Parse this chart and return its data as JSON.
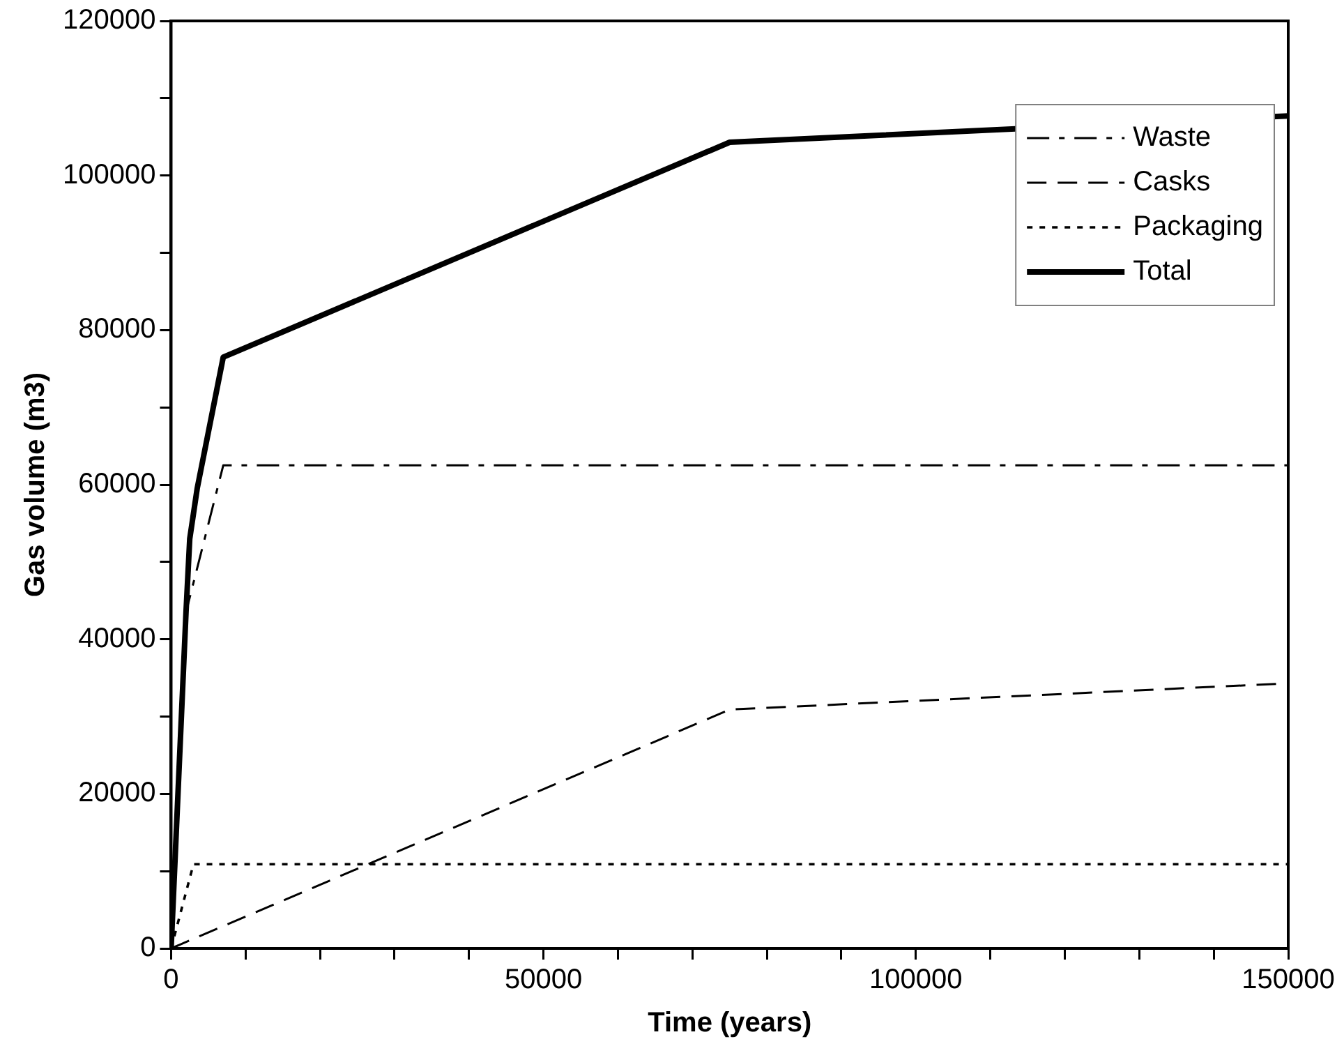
{
  "chart_data": {
    "type": "line",
    "xlabel": "Time (years)",
    "ylabel": "Gas volume (m3)",
    "xlim": [
      0,
      150000
    ],
    "ylim": [
      0,
      120000
    ],
    "xticks": [
      0,
      {
        "value": 10000,
        "label": null
      },
      {
        "value": 20000,
        "label": null
      },
      {
        "value": 30000,
        "label": null
      },
      {
        "value": 40000,
        "label": null
      },
      50000,
      {
        "value": 60000,
        "label": null
      },
      {
        "value": 70000,
        "label": null
      },
      {
        "value": 80000,
        "label": null
      },
      {
        "value": 90000,
        "label": null
      },
      100000,
      {
        "value": 110000,
        "label": null
      },
      {
        "value": 120000,
        "label": null
      },
      {
        "value": 130000,
        "label": null
      },
      {
        "value": 140000,
        "label": null
      },
      150000
    ],
    "yticks": [
      0,
      {
        "value": 10000,
        "label": null
      },
      20000,
      {
        "value": 30000,
        "label": null
      },
      40000,
      {
        "value": 50000,
        "label": null
      },
      60000,
      {
        "value": 70000,
        "label": null
      },
      80000,
      {
        "value": 90000,
        "label": null
      },
      100000,
      {
        "value": 110000,
        "label": null
      },
      120000
    ],
    "grid": false,
    "legend": "top right",
    "marker": "none",
    "series": [
      {
        "name": "Waste",
        "color": "#000000",
        "line_style": "dashdot",
        "x": [
          0,
          2000,
          7000,
          150000
        ],
        "values": [
          0,
          43500,
          62500,
          62500
        ]
      },
      {
        "name": "Casks",
        "color": "#000000",
        "line_style": "dashed",
        "x": [
          0,
          75000,
          150000
        ],
        "values": [
          0,
          30900,
          34300
        ]
      },
      {
        "name": "Packaging",
        "color": "#000000",
        "line_style": "dotted",
        "x": [
          0,
          3000,
          150000
        ],
        "values": [
          0,
          10900,
          10900
        ]
      },
      {
        "name": "Total",
        "color": "#000000",
        "line_style": "solid",
        "x": [
          0,
          2000,
          2500,
          3500,
          7000,
          75000,
          150000
        ],
        "values": [
          0,
          43500,
          53000,
          59500,
          76500,
          104300,
          107700
        ]
      }
    ]
  }
}
